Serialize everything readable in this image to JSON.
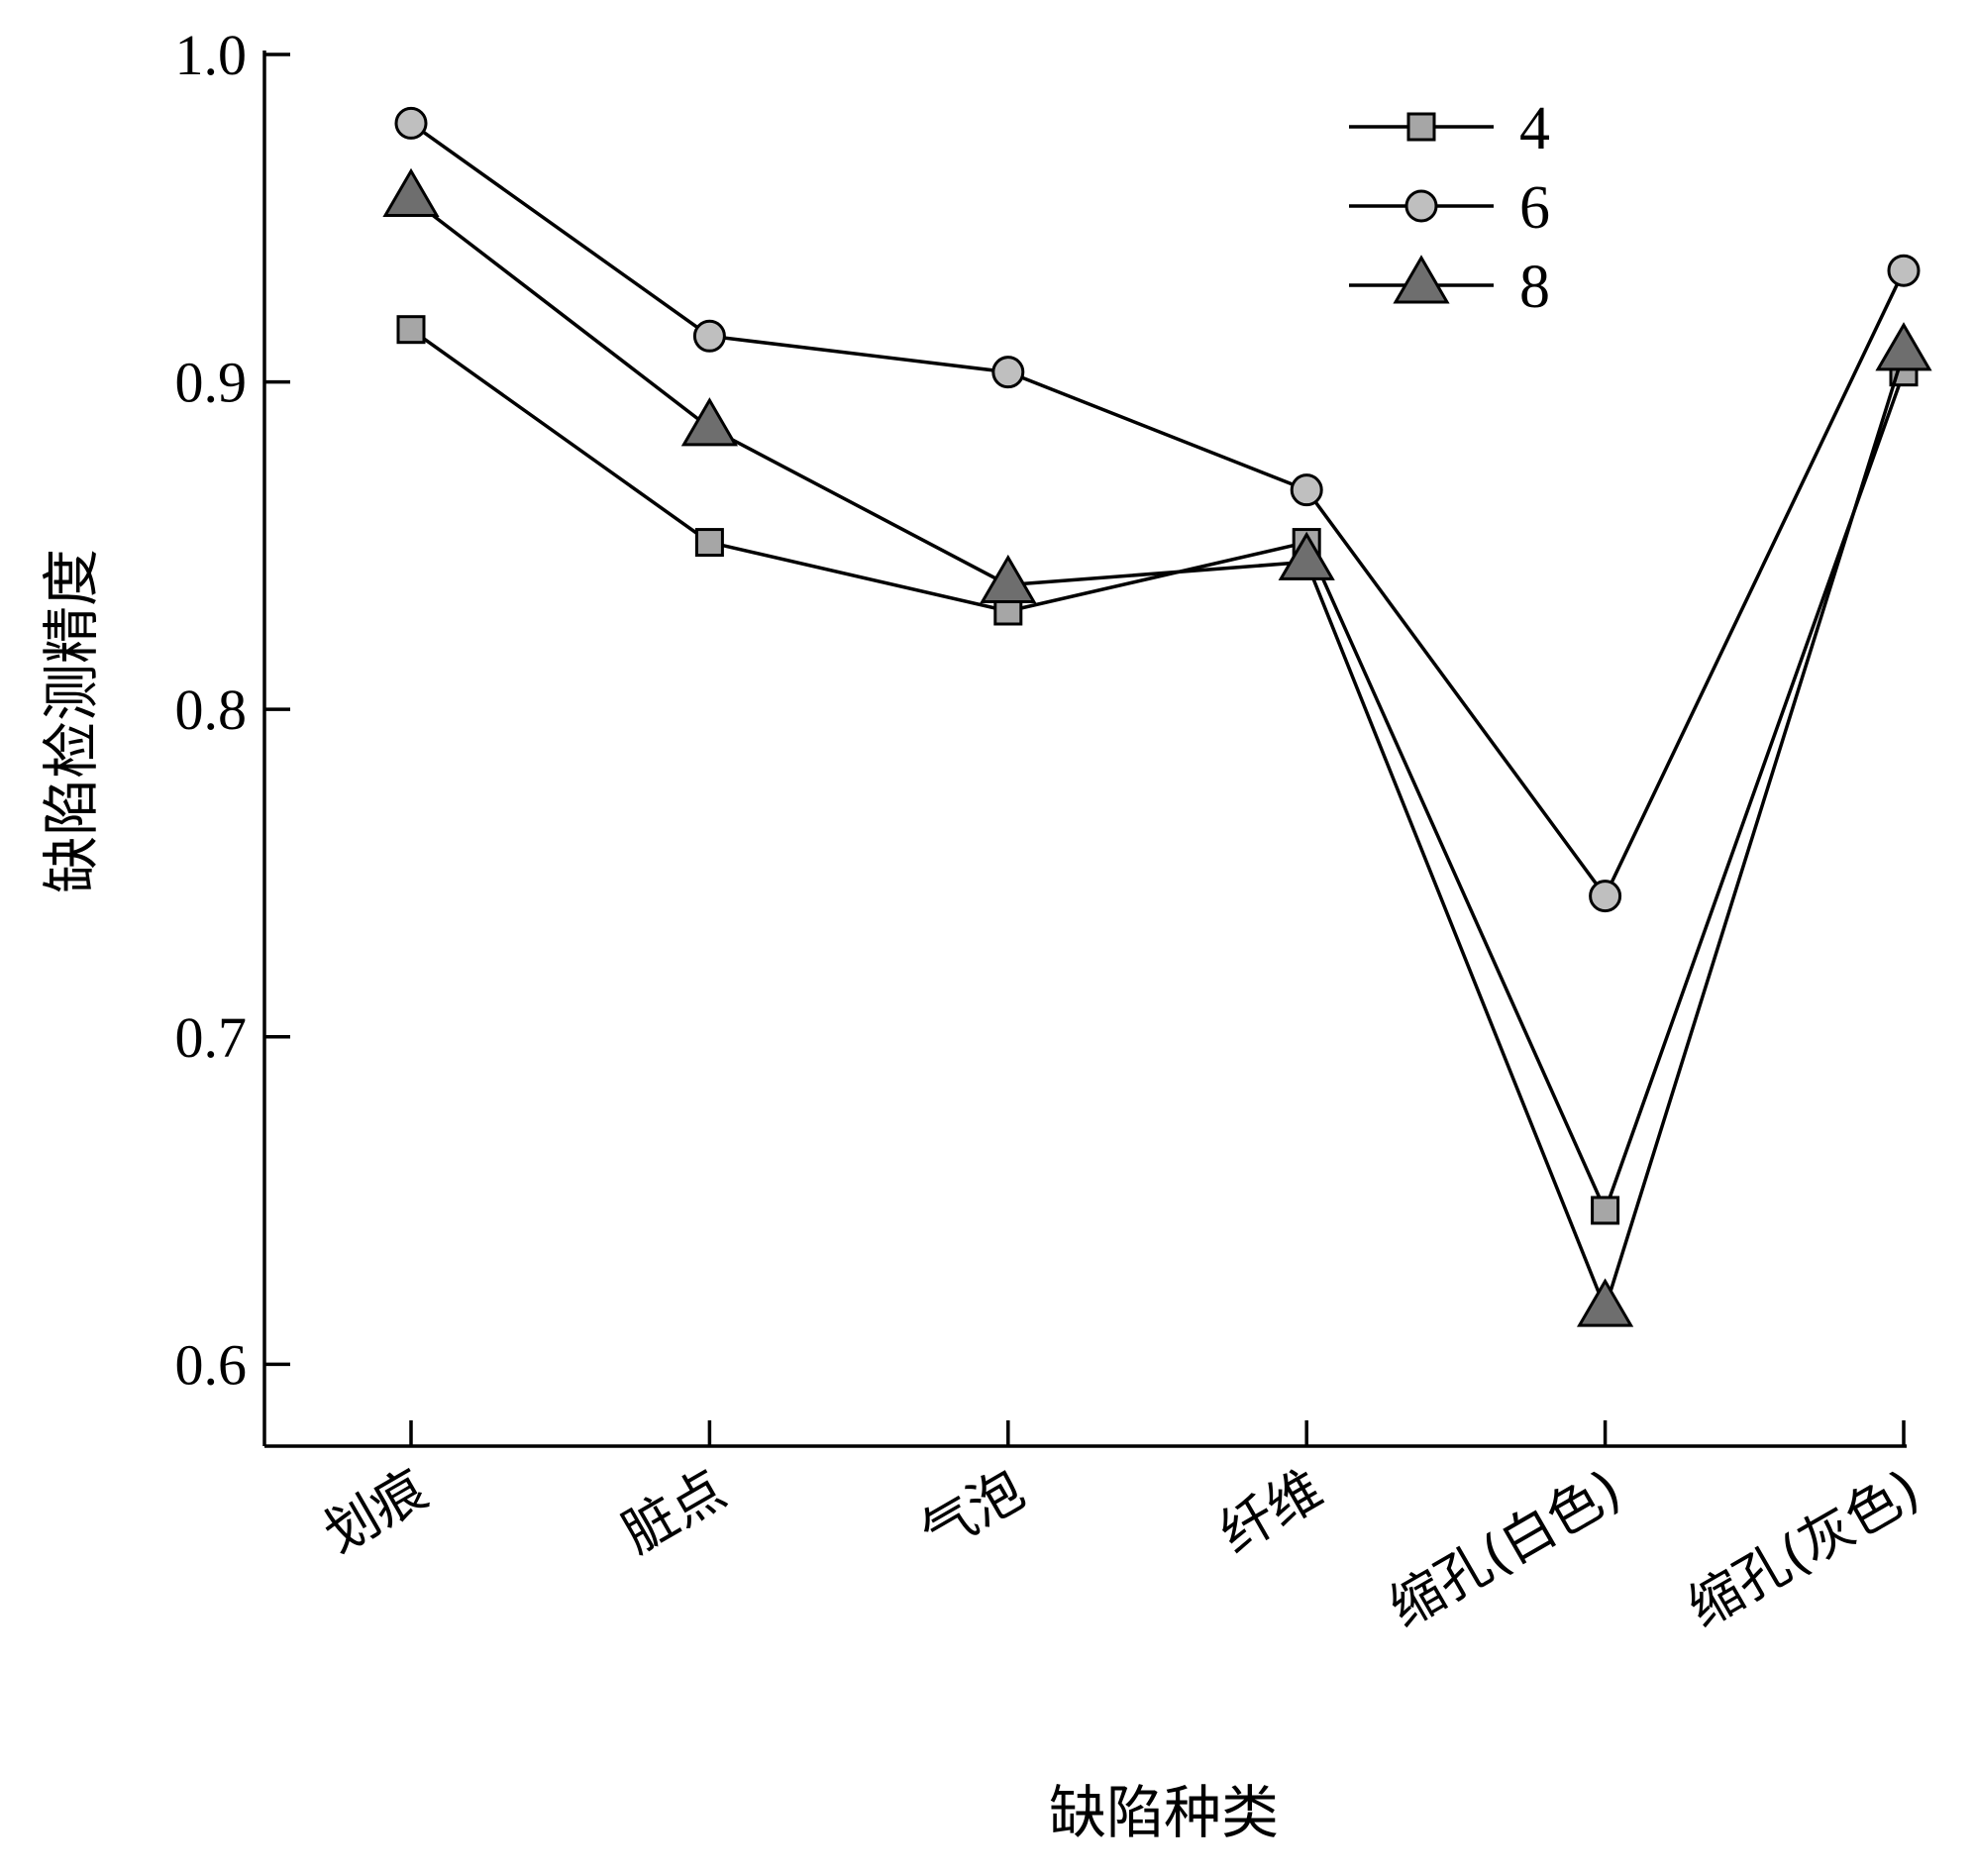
{
  "chart_data": {
    "type": "line",
    "categories": [
      "划痕",
      "脏点",
      "气泡",
      "纤维",
      "缩孔(白色)",
      "缩孔(灰色)"
    ],
    "series": [
      {
        "name": "4",
        "marker": "square",
        "color": "#a6a6a6",
        "values": [
          0.916,
          0.851,
          0.83,
          0.851,
          0.647,
          0.903
        ]
      },
      {
        "name": "6",
        "marker": "circle",
        "color": "#bfbfbf",
        "values": [
          0.979,
          0.914,
          0.903,
          0.867,
          0.743,
          0.934
        ]
      },
      {
        "name": "8",
        "marker": "triangle",
        "color": "#6e6e6e",
        "values": [
          0.956,
          0.886,
          0.838,
          0.845,
          0.617,
          0.909
        ]
      }
    ],
    "xlabel": "缺陷种类",
    "ylabel": "缺陷检测精度",
    "ylim": [
      0.575,
      1.0
    ],
    "yticks": [
      0.6,
      0.7,
      0.8,
      0.9,
      1.0
    ],
    "ytick_labels": [
      "0.6",
      "0.7",
      "0.8",
      "0.9",
      "1.0"
    ],
    "grid": false,
    "legend": "top-right"
  }
}
